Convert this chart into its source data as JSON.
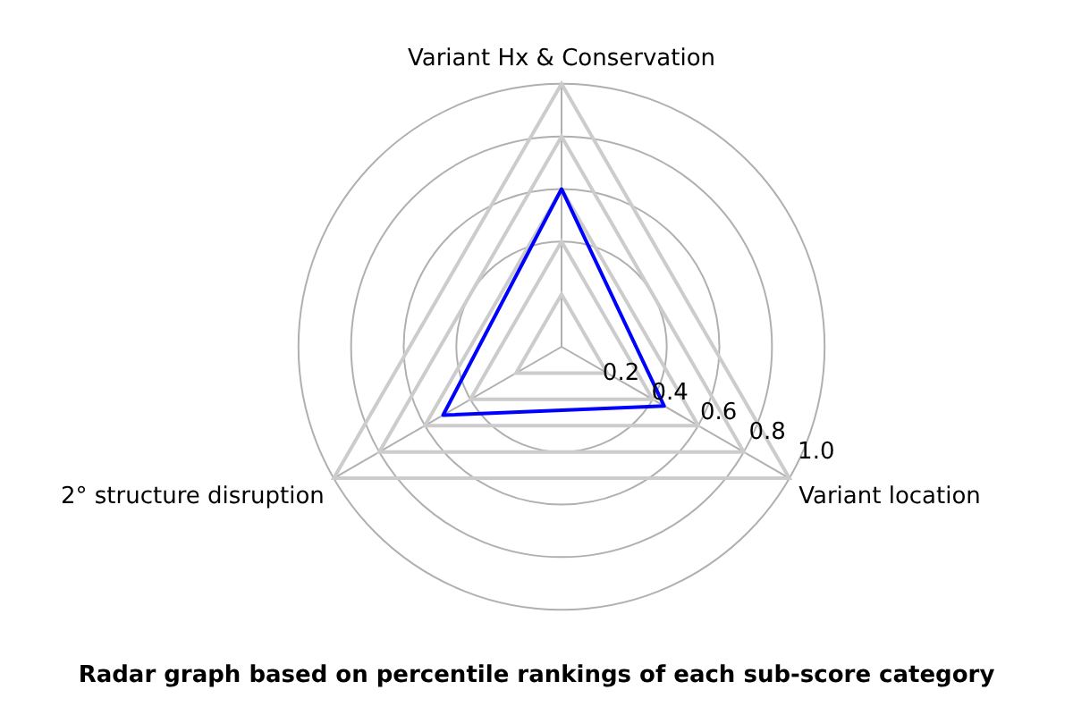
{
  "chart_data": {
    "type": "radar",
    "title": "Radar graph based on percentile rankings of each sub-score category",
    "categories": [
      "Variant Hx & Conservation",
      "Variant location",
      "2° structure disruption"
    ],
    "series": [
      {
        "color": "#0000ff",
        "values": [
          0.6,
          0.45,
          0.52
        ]
      }
    ],
    "ylim": [
      0,
      1.0
    ],
    "yticks": [
      0.2,
      0.4,
      0.6,
      0.8,
      {
        "value": 1.0,
        "label": "1.0"
      }
    ],
    "grid": true,
    "legend": false
  }
}
